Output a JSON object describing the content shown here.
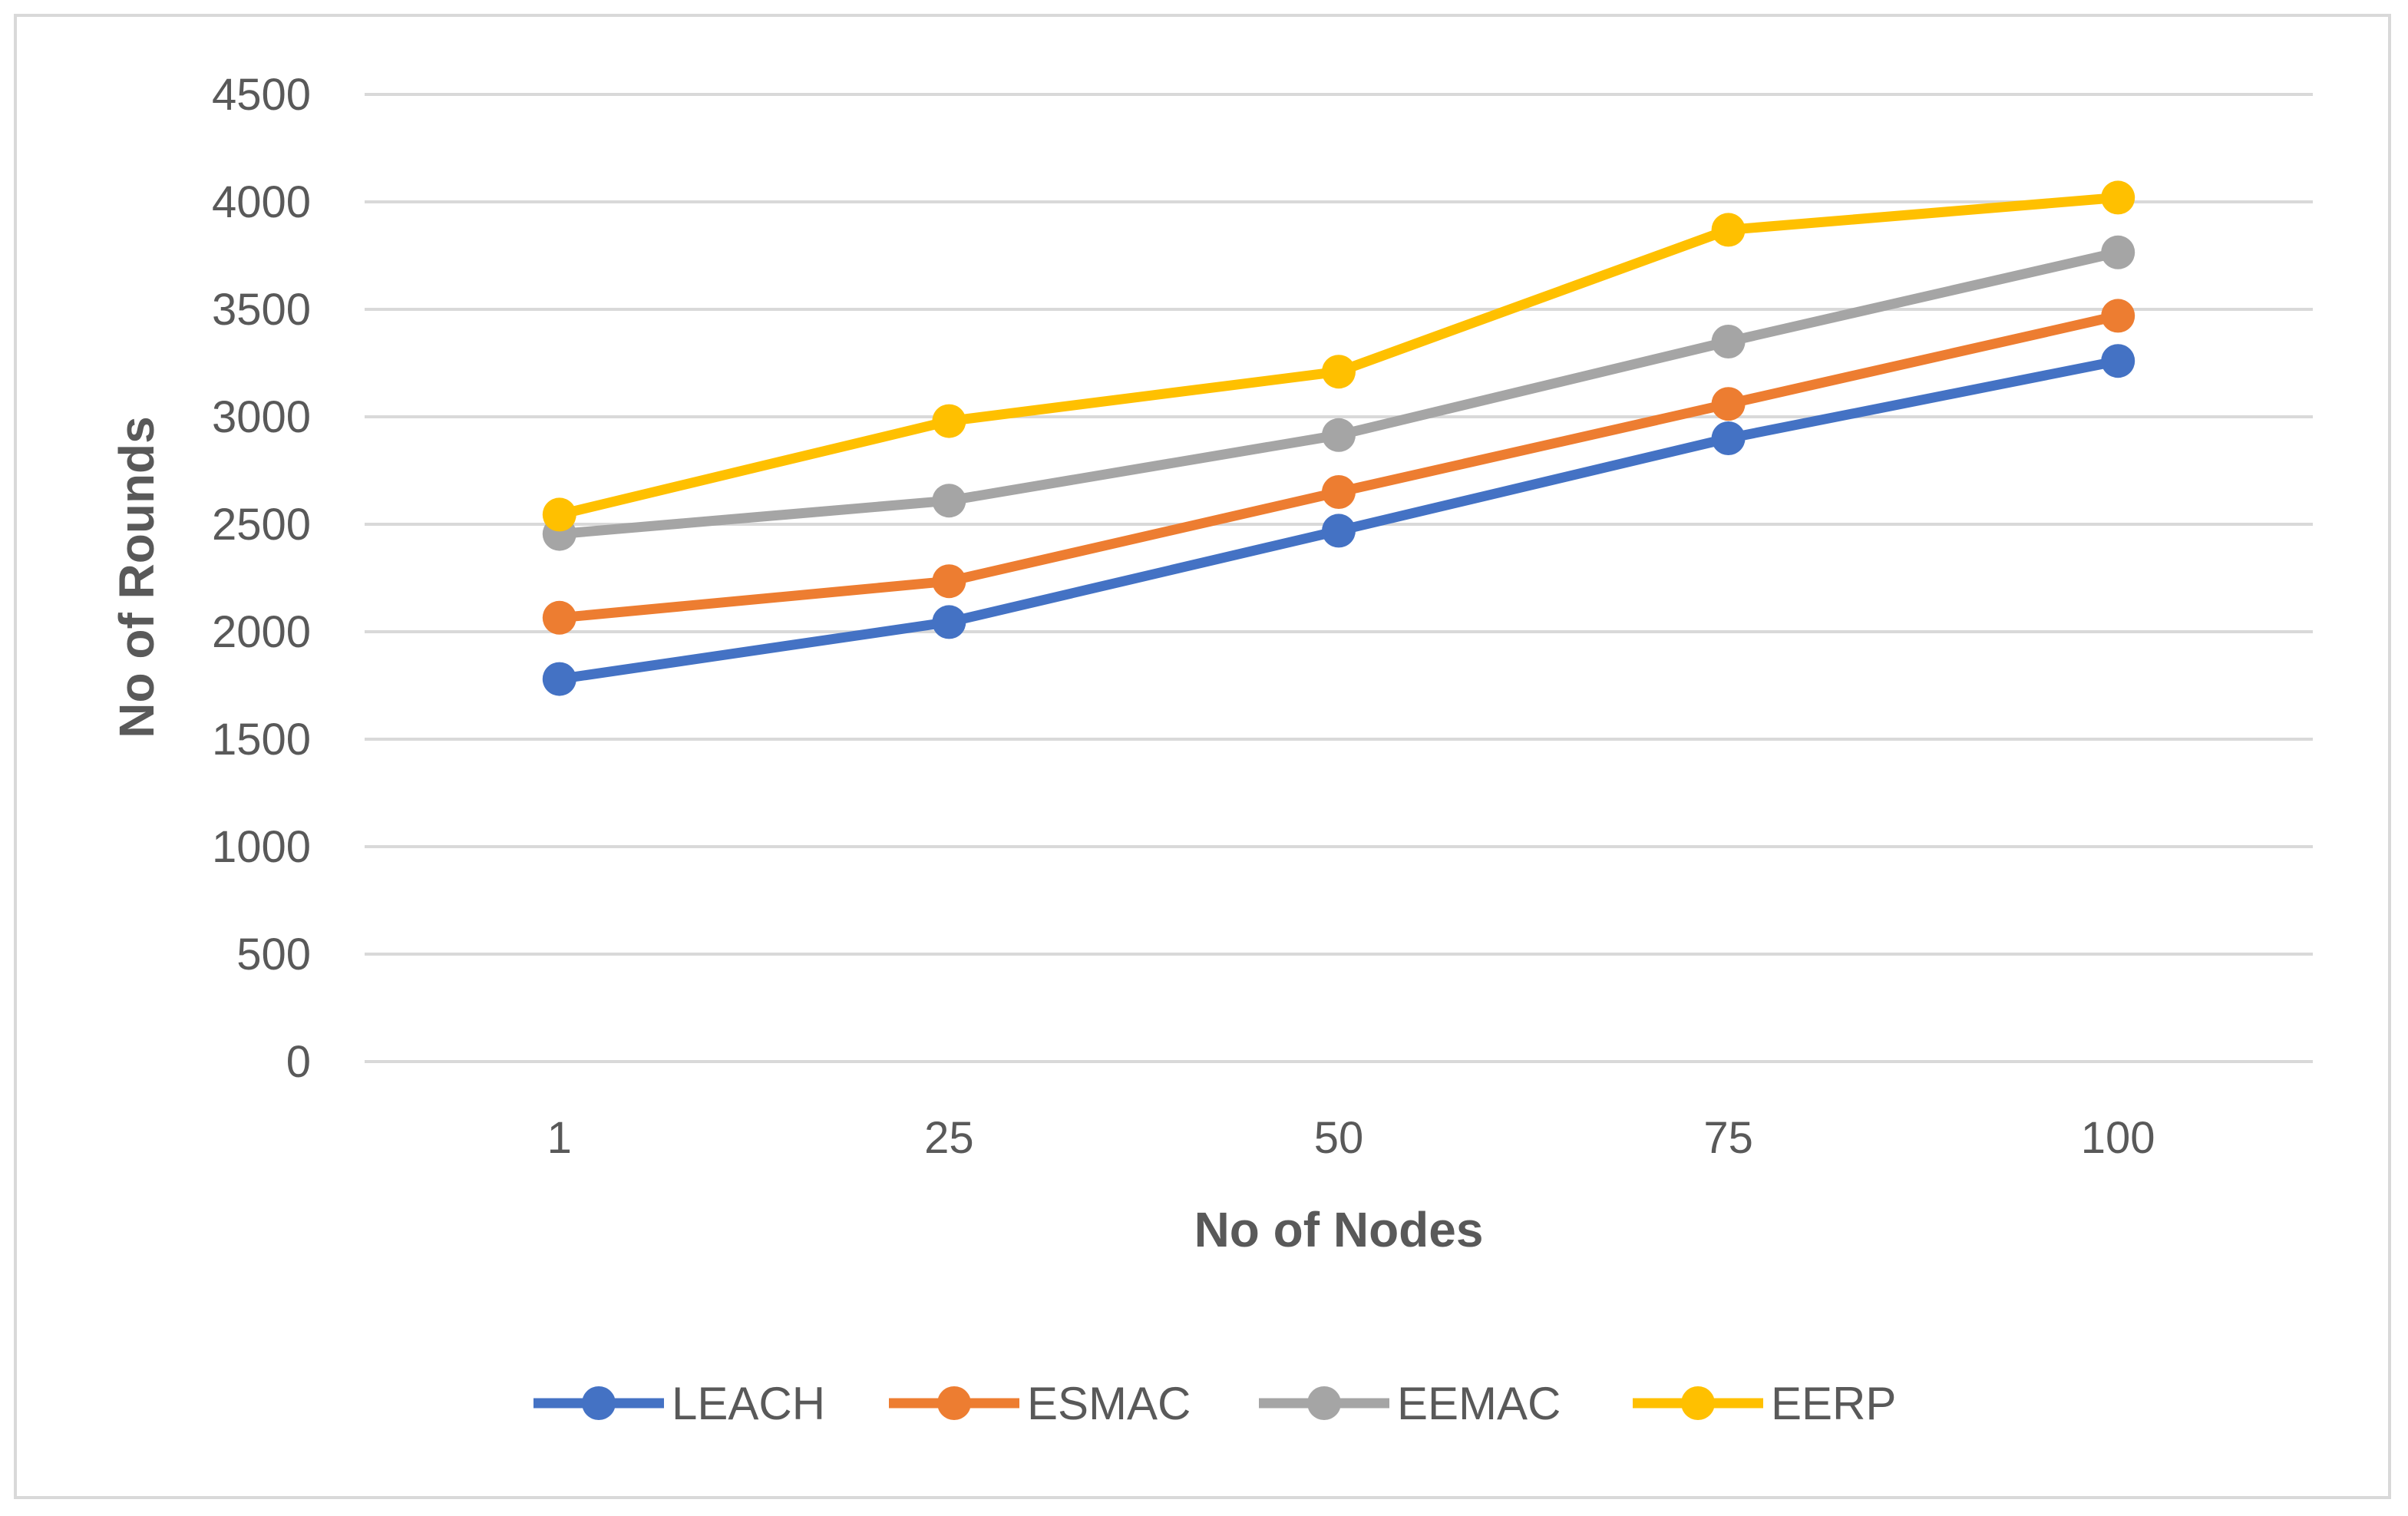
{
  "chart_data": {
    "type": "line",
    "title": "",
    "xlabel": "No of Nodes",
    "ylabel": "No of Rounds",
    "categories": [
      "1",
      "25",
      "50",
      "75",
      "100"
    ],
    "ylim": [
      0,
      4500
    ],
    "yticks": [
      0,
      500,
      1000,
      1500,
      2000,
      2500,
      3000,
      3500,
      4000,
      4500
    ],
    "grid": true,
    "legend_position": "bottom",
    "series": [
      {
        "name": "LEACH",
        "color": "#4472C4",
        "values": [
          1780,
          2045,
          2470,
          2900,
          3260
        ]
      },
      {
        "name": "ESMAC",
        "color": "#ED7D31",
        "values": [
          2065,
          2235,
          2650,
          3060,
          3470
        ]
      },
      {
        "name": "EEMAC",
        "color": "#A5A5A5",
        "values": [
          2455,
          2610,
          2915,
          3350,
          3765
        ]
      },
      {
        "name": "EERP",
        "color": "#FFC000",
        "values": [
          2545,
          2980,
          3210,
          3870,
          4020
        ]
      }
    ]
  }
}
